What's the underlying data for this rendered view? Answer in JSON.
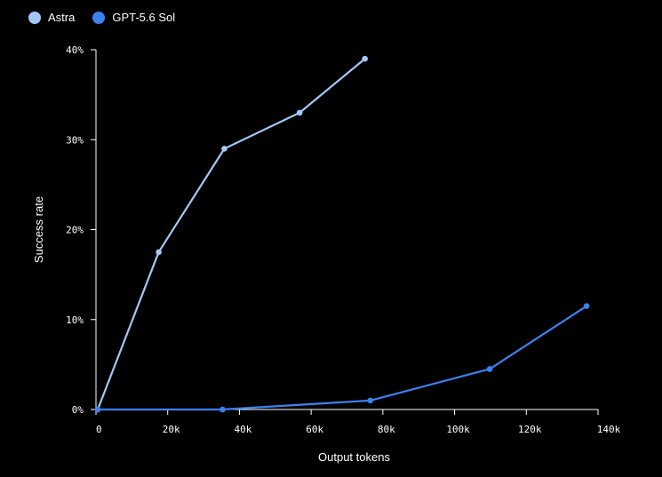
{
  "chart_data": {
    "type": "line",
    "title": "",
    "xlabel": "Output tokens",
    "ylabel": "Success rate",
    "xlim": [
      0,
      140000
    ],
    "ylim": [
      0,
      40
    ],
    "x_ticks": [
      {
        "value": 0,
        "label": "0"
      },
      {
        "value": 20000,
        "label": "20k"
      },
      {
        "value": 40000,
        "label": "40k"
      },
      {
        "value": 60000,
        "label": "60k"
      },
      {
        "value": 80000,
        "label": "80k"
      },
      {
        "value": 100000,
        "label": "100k"
      },
      {
        "value": 120000,
        "label": "120k"
      },
      {
        "value": 140000,
        "label": "140k"
      }
    ],
    "y_ticks": [
      {
        "value": 0,
        "label": "0%"
      },
      {
        "value": 10,
        "label": "10%"
      },
      {
        "value": 20,
        "label": "20%"
      },
      {
        "value": 30,
        "label": "30%"
      },
      {
        "value": 40,
        "label": "40%"
      }
    ],
    "grid": false,
    "legend_position": "top-left",
    "series": [
      {
        "name": "Astra",
        "color": "#a4c8f5",
        "points": [
          {
            "x": 500,
            "y": 0
          },
          {
            "x": 17500,
            "y": 17.5
          },
          {
            "x": 35800,
            "y": 29
          },
          {
            "x": 56800,
            "y": 33
          },
          {
            "x": 75000,
            "y": 39
          }
        ]
      },
      {
        "name": "GPT-5.6 Sol",
        "color": "#3b82f0",
        "points": [
          {
            "x": 500,
            "y": 0
          },
          {
            "x": 35300,
            "y": 0
          },
          {
            "x": 76500,
            "y": 1
          },
          {
            "x": 109800,
            "y": 4.5
          },
          {
            "x": 136800,
            "y": 11.5
          }
        ]
      }
    ]
  }
}
